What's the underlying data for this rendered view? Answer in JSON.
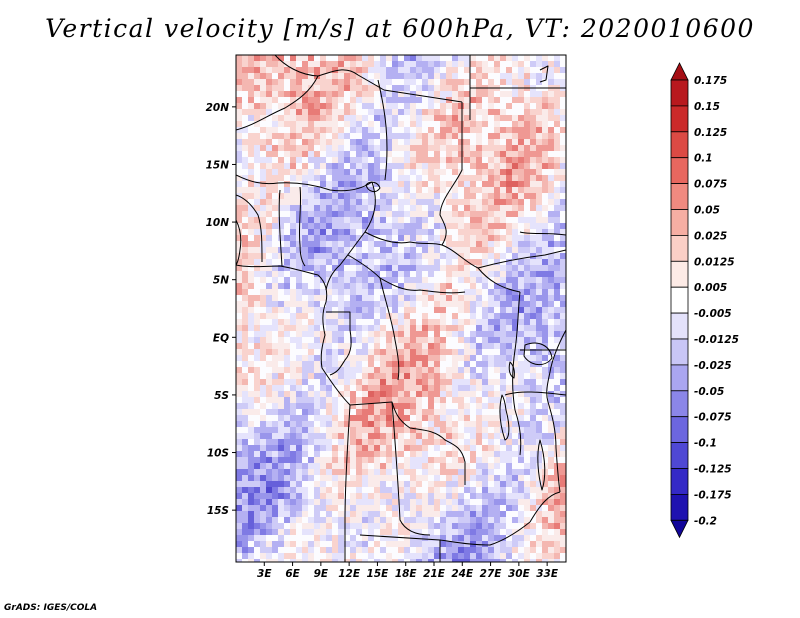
{
  "title": "Vertical velocity [m/s] at 600hPa, VT: 2020010600",
  "footer": "GrADS: IGES/COLA",
  "map": {
    "lon_range": [
      0,
      35
    ],
    "lat_range": [
      -19.5,
      24.5
    ],
    "x_ticks": [
      "3E",
      "6E",
      "9E",
      "12E",
      "15E",
      "18E",
      "21E",
      "24E",
      "27E",
      "30E",
      "33E"
    ],
    "y_ticks": [
      "20N",
      "15N",
      "10N",
      "5N",
      "EQ",
      "5S",
      "10S",
      "15S"
    ]
  },
  "colorbar": {
    "labels": [
      "0.175",
      "0.15",
      "0.125",
      "0.1",
      "0.075",
      "0.05",
      "0.025",
      "0.0125",
      "0.005",
      "-0.005",
      "-0.0125",
      "-0.025",
      "-0.05",
      "-0.075",
      "-0.1",
      "-0.125",
      "-0.175",
      "-0.2"
    ],
    "colors": [
      "#a50f15",
      "#b8191e",
      "#cb2a2a",
      "#dc4a44",
      "#e8675f",
      "#f08a80",
      "#f6aea3",
      "#fbcfc6",
      "#fdebe6",
      "#ffffff",
      "#e4e2fb",
      "#c9c6f6",
      "#aaa6f0",
      "#8b86e8",
      "#6c66df",
      "#4f48d4",
      "#3429c6",
      "#1f12b0",
      "#12069a"
    ]
  }
}
